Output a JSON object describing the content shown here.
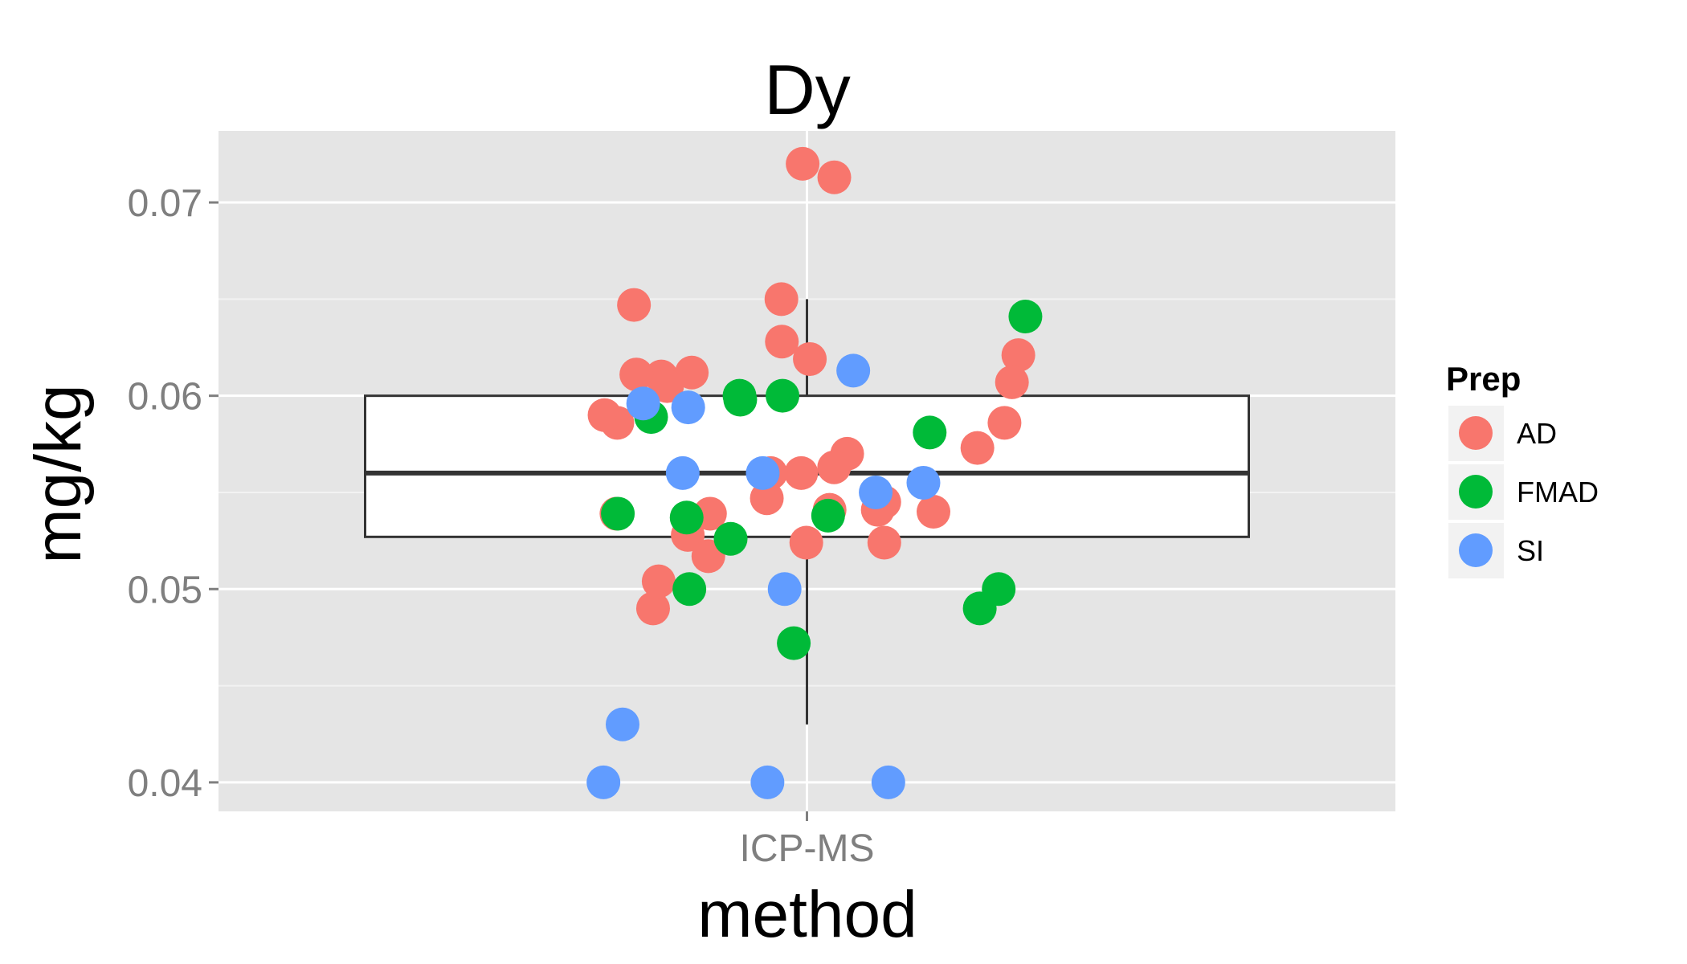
{
  "chart_data": {
    "type": "boxplot-jitter",
    "title": "Dy",
    "xlabel": "method",
    "ylabel": "mg/kg",
    "categories": [
      "ICP-MS"
    ],
    "ylim": [
      0.0385,
      0.0737
    ],
    "yticks": [
      0.04,
      0.05,
      0.06,
      0.07
    ],
    "ytick_labels": [
      "0.04",
      "0.05",
      "0.06",
      "0.07"
    ],
    "grid": true,
    "legend": {
      "title": "Prep",
      "position": "right",
      "entries": [
        {
          "label": "AD",
          "color": "#F8766D"
        },
        {
          "label": "FMAD",
          "color": "#00BA38"
        },
        {
          "label": "SI",
          "color": "#619CFF"
        }
      ]
    },
    "box": {
      "category": "ICP-MS",
      "whisker_low": 0.043,
      "q1": 0.0527,
      "median": 0.056,
      "q3": 0.06,
      "whisker_high": 0.065
    },
    "series": [
      {
        "name": "AD",
        "color": "#F8766D",
        "values": [
          0.072,
          0.0713,
          0.0647,
          0.0612,
          0.065,
          0.0619,
          0.0586,
          0.0573,
          0.057,
          0.0547,
          0.0539,
          0.054,
          0.0541,
          0.0539,
          0.0524,
          0.0528,
          0.0524,
          0.049,
          0.0563,
          0.056,
          0.061,
          0.059,
          0.0586,
          0.0621,
          0.0611,
          0.0628,
          0.0607,
          0.0605,
          0.056,
          0.0541,
          0.0545,
          0.0517,
          0.0504
        ]
      },
      {
        "name": "FMAD",
        "color": "#00BA38",
        "values": [
          0.0641,
          0.06,
          0.0537,
          0.0538,
          0.0526,
          0.0589,
          0.0581,
          0.0598,
          0.06,
          0.0539,
          0.05,
          0.05,
          0.049,
          0.0472
        ]
      },
      {
        "name": "SI",
        "color": "#619CFF",
        "values": [
          0.0594,
          0.0613,
          0.056,
          0.0555,
          0.055,
          0.0596,
          0.056,
          0.05,
          0.043,
          0.04,
          0.04,
          0.04
        ]
      }
    ]
  }
}
